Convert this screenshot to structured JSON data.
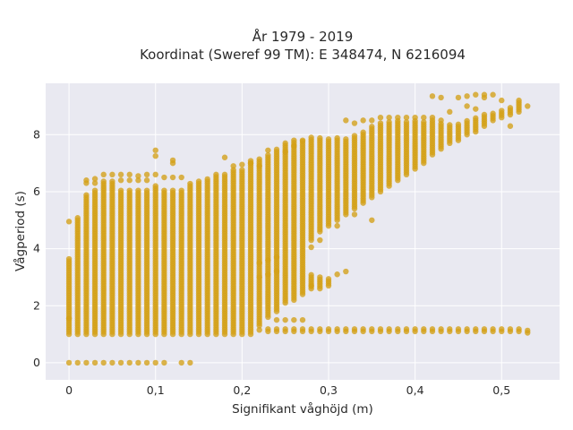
{
  "chart_data": {
    "type": "scatter",
    "title_line1": "År 1979 - 2019",
    "title_line2": "Koordinat (Sweref 99 TM): E 348474, N 6216094",
    "xlabel": "Signifikant våghöjd (m)",
    "ylabel": "Vågperiod (s)",
    "xlim": [
      -0.027,
      0.567
    ],
    "ylim": [
      -0.6,
      9.8
    ],
    "x_ticks": [
      0,
      0.1,
      0.2,
      0.3,
      0.4,
      0.5
    ],
    "x_tick_labels": [
      "0",
      "0,1",
      "0,2",
      "0,3",
      "0,4",
      "0,5"
    ],
    "y_ticks": [
      0,
      2,
      4,
      6,
      8
    ],
    "y_tick_labels": [
      "0",
      "2",
      "4",
      "6",
      "8"
    ],
    "grid": true,
    "marker_color": "#D4A017",
    "background_color": "#E9E9F1",
    "x_step": 0.01,
    "columns": [
      {
        "x": 0.0,
        "ranges": [
          [
            1.0,
            3.7
          ]
        ],
        "points": [
          0,
          4.95,
          1.55
        ]
      },
      {
        "x": 0.01,
        "ranges": [
          [
            1.0,
            5.1
          ]
        ],
        "points": [
          0
        ]
      },
      {
        "x": 0.02,
        "ranges": [
          [
            1.0,
            5.9
          ]
        ],
        "points": [
          0,
          6.4,
          6.3
        ]
      },
      {
        "x": 0.03,
        "ranges": [
          [
            1.0,
            6.1
          ]
        ],
        "points": [
          0,
          6.45,
          6.3
        ]
      },
      {
        "x": 0.04,
        "ranges": [
          [
            1.0,
            6.4
          ]
        ],
        "points": [
          0,
          6.6
        ]
      },
      {
        "x": 0.05,
        "ranges": [
          [
            1.0,
            6.4
          ]
        ],
        "points": [
          0,
          6.6
        ]
      },
      {
        "x": 0.06,
        "ranges": [
          [
            1.0,
            6.1
          ]
        ],
        "points": [
          0,
          6.6,
          6.4
        ]
      },
      {
        "x": 0.07,
        "ranges": [
          [
            1.0,
            6.1
          ]
        ],
        "points": [
          0,
          6.6,
          6.4
        ]
      },
      {
        "x": 0.08,
        "ranges": [
          [
            1.0,
            6.1
          ]
        ],
        "points": [
          0,
          6.55,
          6.4
        ]
      },
      {
        "x": 0.09,
        "ranges": [
          [
            1.0,
            6.1
          ]
        ],
        "points": [
          0,
          6.6,
          6.4
        ]
      },
      {
        "x": 0.1,
        "ranges": [
          [
            1.0,
            6.2
          ]
        ],
        "points": [
          0,
          7.45,
          7.25,
          6.6
        ]
      },
      {
        "x": 0.11,
        "ranges": [
          [
            1.0,
            6.1
          ]
        ],
        "points": [
          0,
          6.5
        ]
      },
      {
        "x": 0.12,
        "ranges": [
          [
            1.0,
            6.1
          ]
        ],
        "points": [
          7.1,
          7.0,
          6.5
        ]
      },
      {
        "x": 0.13,
        "ranges": [
          [
            1.0,
            6.1
          ]
        ],
        "points": [
          0,
          6.5
        ]
      },
      {
        "x": 0.14,
        "ranges": [
          [
            1.0,
            6.3
          ]
        ],
        "points": [
          0
        ]
      },
      {
        "x": 0.15,
        "ranges": [
          [
            1.0,
            6.4
          ]
        ],
        "points": []
      },
      {
        "x": 0.16,
        "ranges": [
          [
            1.0,
            6.5
          ]
        ],
        "points": []
      },
      {
        "x": 0.17,
        "ranges": [
          [
            1.0,
            6.6
          ]
        ],
        "points": []
      },
      {
        "x": 0.18,
        "ranges": [
          [
            1.0,
            6.6
          ]
        ],
        "points": [
          7.2
        ]
      },
      {
        "x": 0.19,
        "ranges": [
          [
            1.0,
            6.8
          ]
        ],
        "points": [
          6.9
        ]
      },
      {
        "x": 0.2,
        "ranges": [
          [
            1.0,
            6.8
          ]
        ],
        "points": [
          6.95
        ]
      },
      {
        "x": 0.21,
        "ranges": [
          [
            1.0,
            7.1
          ]
        ],
        "points": [
          7.0
        ]
      },
      {
        "x": 0.22,
        "ranges": [
          [
            1.3,
            7.2
          ]
        ],
        "points": [
          1.15,
          6.9,
          3.5,
          3.0
        ]
      },
      {
        "x": 0.23,
        "ranges": [
          [
            1.6,
            7.3
          ],
          [
            1.1,
            1.2
          ]
        ],
        "points": [
          7.45,
          3.6,
          3.1
        ]
      },
      {
        "x": 0.24,
        "ranges": [
          [
            1.8,
            7.5
          ],
          [
            1.1,
            1.2
          ]
        ],
        "points": [
          1.5,
          3.7,
          3.2
        ]
      },
      {
        "x": 0.25,
        "ranges": [
          [
            2.1,
            7.7
          ],
          [
            1.1,
            1.2
          ]
        ],
        "points": [
          1.5,
          7.4
        ]
      },
      {
        "x": 0.26,
        "ranges": [
          [
            2.2,
            7.8
          ],
          [
            1.1,
            1.2
          ]
        ],
        "points": [
          1.5,
          7.6
        ]
      },
      {
        "x": 0.27,
        "ranges": [
          [
            2.4,
            7.8
          ],
          [
            1.1,
            1.2
          ]
        ],
        "points": [
          1.5,
          7.8
        ]
      },
      {
        "x": 0.28,
        "ranges": [
          [
            2.6,
            3.1
          ],
          [
            4.3,
            7.9
          ],
          [
            1.1,
            1.2
          ]
        ],
        "points": [
          2.7,
          4.05
        ]
      },
      {
        "x": 0.29,
        "ranges": [
          [
            2.6,
            3.0
          ],
          [
            4.6,
            7.9
          ],
          [
            1.1,
            1.2
          ]
        ],
        "points": [
          4.3
        ]
      },
      {
        "x": 0.3,
        "ranges": [
          [
            2.7,
            3.0
          ],
          [
            4.8,
            7.9
          ],
          [
            1.1,
            1.2
          ]
        ],
        "points": []
      },
      {
        "x": 0.31,
        "ranges": [
          [
            5.0,
            7.9
          ],
          [
            1.1,
            1.2
          ]
        ],
        "points": [
          3.1,
          4.8
        ]
      },
      {
        "x": 0.32,
        "ranges": [
          [
            5.2,
            7.9
          ],
          [
            1.1,
            1.2
          ]
        ],
        "points": [
          3.2,
          8.5
        ]
      },
      {
        "x": 0.33,
        "ranges": [
          [
            5.4,
            8.0
          ],
          [
            1.1,
            1.2
          ]
        ],
        "points": [
          5.2,
          8.4
        ]
      },
      {
        "x": 0.34,
        "ranges": [
          [
            5.6,
            8.1
          ],
          [
            1.1,
            1.2
          ]
        ],
        "points": [
          8.5
        ]
      },
      {
        "x": 0.35,
        "ranges": [
          [
            5.8,
            8.3
          ],
          [
            1.1,
            1.2
          ]
        ],
        "points": [
          5.0,
          8.5
        ]
      },
      {
        "x": 0.36,
        "ranges": [
          [
            6.0,
            8.4
          ],
          [
            1.1,
            1.2
          ]
        ],
        "points": [
          8.6
        ]
      },
      {
        "x": 0.37,
        "ranges": [
          [
            6.2,
            8.5
          ],
          [
            1.1,
            1.2
          ]
        ],
        "points": [
          8.6
        ]
      },
      {
        "x": 0.38,
        "ranges": [
          [
            6.4,
            8.5
          ],
          [
            1.1,
            1.2
          ]
        ],
        "points": [
          8.6
        ]
      },
      {
        "x": 0.39,
        "ranges": [
          [
            6.6,
            8.5
          ],
          [
            1.1,
            1.2
          ]
        ],
        "points": [
          8.6
        ]
      },
      {
        "x": 0.4,
        "ranges": [
          [
            6.8,
            8.5
          ],
          [
            1.1,
            1.2
          ]
        ],
        "points": [
          8.6
        ]
      },
      {
        "x": 0.41,
        "ranges": [
          [
            7.0,
            8.5
          ],
          [
            1.1,
            1.2
          ]
        ],
        "points": [
          8.6
        ]
      },
      {
        "x": 0.42,
        "ranges": [
          [
            7.3,
            8.5
          ],
          [
            1.1,
            1.2
          ]
        ],
        "points": [
          9.35,
          8.6
        ]
      },
      {
        "x": 0.43,
        "ranges": [
          [
            7.5,
            8.4
          ],
          [
            1.1,
            1.2
          ]
        ],
        "points": [
          9.3,
          8.5
        ]
      },
      {
        "x": 0.44,
        "ranges": [
          [
            7.7,
            8.4
          ],
          [
            1.1,
            1.2
          ]
        ],
        "points": [
          8.8
        ]
      },
      {
        "x": 0.45,
        "ranges": [
          [
            7.8,
            8.4
          ],
          [
            1.1,
            1.2
          ]
        ],
        "points": [
          9.3
        ]
      },
      {
        "x": 0.46,
        "ranges": [
          [
            8.0,
            8.5
          ],
          [
            1.1,
            1.2
          ]
        ],
        "points": [
          9.35,
          9.0
        ]
      },
      {
        "x": 0.47,
        "ranges": [
          [
            8.1,
            8.6
          ],
          [
            1.1,
            1.2
          ]
        ],
        "points": [
          9.4,
          8.9
        ]
      },
      {
        "x": 0.48,
        "ranges": [
          [
            8.3,
            8.7
          ],
          [
            1.1,
            1.2
          ]
        ],
        "points": [
          9.4,
          9.3
        ]
      },
      {
        "x": 0.49,
        "ranges": [
          [
            8.5,
            8.8
          ],
          [
            1.1,
            1.2
          ]
        ],
        "points": [
          9.4
        ]
      },
      {
        "x": 0.5,
        "ranges": [
          [
            8.6,
            8.9
          ],
          [
            1.1,
            1.2
          ]
        ],
        "points": [
          9.2
        ]
      },
      {
        "x": 0.51,
        "ranges": [
          [
            8.7,
            9.0
          ],
          [
            1.1,
            1.2
          ]
        ],
        "points": [
          8.3
        ]
      },
      {
        "x": 0.52,
        "ranges": [
          [
            8.8,
            9.2
          ],
          [
            1.1,
            1.2
          ]
        ],
        "points": []
      },
      {
        "x": 0.53,
        "ranges": [
          [
            1.05,
            1.2
          ]
        ],
        "points": [
          9.0
        ]
      }
    ]
  }
}
